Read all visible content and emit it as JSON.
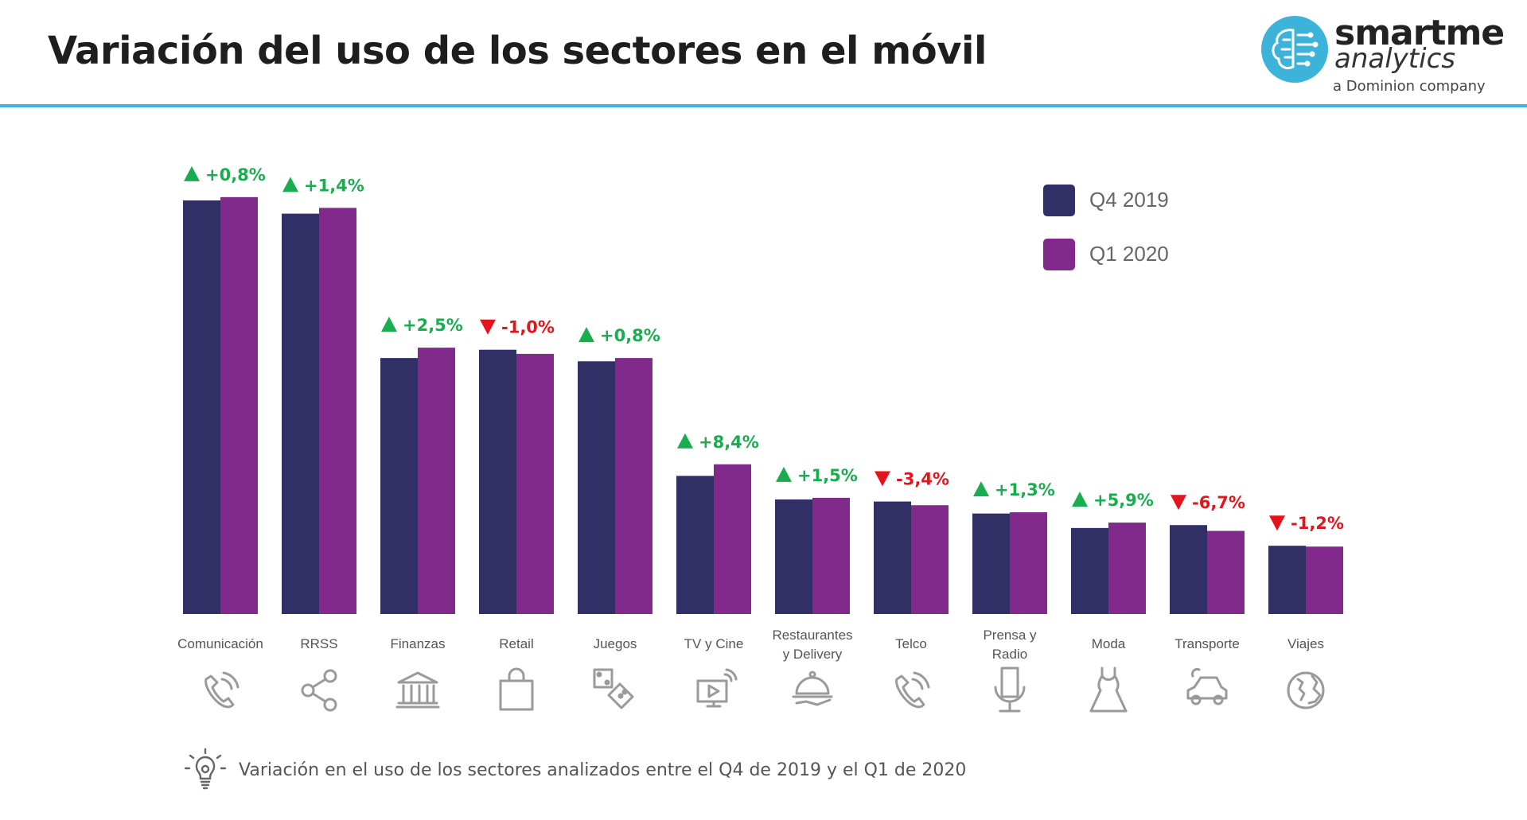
{
  "header": {
    "title": "Variación del uso de los sectores en el móvil"
  },
  "logo": {
    "name": "smartme",
    "sub": "analytics",
    "company": "a Dominion company"
  },
  "colors": {
    "accent": "#3db3d9",
    "q4_2019": "#302f66",
    "q1_2020": "#812a8c",
    "up": "#1aad4f",
    "down": "#e3141c",
    "icon": "#9a9a9a"
  },
  "chart_data": {
    "type": "bar",
    "title": "",
    "xlabel": "",
    "ylabel": "",
    "grid": false,
    "legend_position": "top-right",
    "ylim": [
      0,
      100
    ],
    "categories": [
      "Comunicación",
      "RRSS",
      "Finanzas",
      "Retail",
      "Juegos",
      "TV y Cine",
      "Restaurantes y Delivery",
      "Telco",
      "Prensa y Radio",
      "Moda",
      "Transporte",
      "Viajes"
    ],
    "category_label_lines": [
      [
        "Comunicación"
      ],
      [
        "RRSS"
      ],
      [
        "Finanzas"
      ],
      [
        "Retail"
      ],
      [
        "Juegos"
      ],
      [
        "TV y Cine"
      ],
      [
        "Restaurantes",
        "y Delivery"
      ],
      [
        "Telco"
      ],
      [
        "Prensa y",
        "Radio"
      ],
      [
        "Moda"
      ],
      [
        "Transporte"
      ],
      [
        "Viajes"
      ]
    ],
    "category_icons": [
      "phone-icon",
      "share-icon",
      "bank-icon",
      "shopping-bag-icon",
      "dice-icon",
      "tv-play-icon",
      "serving-cloche-icon",
      "phone-icon",
      "microphone-icon",
      "dress-icon",
      "car-icon",
      "globe-icon"
    ],
    "series": [
      {
        "name": "Q4 2019",
        "values": [
          100,
          96.8,
          61.9,
          63.9,
          61.1,
          33.4,
          27.7,
          27.2,
          24.3,
          20.8,
          21.5,
          16.5
        ]
      },
      {
        "name": "Q1 2020",
        "values": [
          100.8,
          98.2,
          64.4,
          62.9,
          61.9,
          36.2,
          28.1,
          26.3,
          24.6,
          22.1,
          20.1,
          16.3
        ]
      }
    ],
    "annotations": [
      {
        "label": "+0,8%",
        "direction": "up"
      },
      {
        "label": "+1,4%",
        "direction": "up"
      },
      {
        "label": "+2,5%",
        "direction": "up"
      },
      {
        "label": "-1,0%",
        "direction": "down"
      },
      {
        "label": "+0,8%",
        "direction": "up"
      },
      {
        "label": "+8,4%",
        "direction": "up"
      },
      {
        "label": "+1,5%",
        "direction": "up"
      },
      {
        "label": "-3,4%",
        "direction": "down"
      },
      {
        "label": "+1,3%",
        "direction": "up"
      },
      {
        "label": "+5,9%",
        "direction": "up"
      },
      {
        "label": "-6,7%",
        "direction": "down"
      },
      {
        "label": "-1,2%",
        "direction": "down"
      }
    ]
  },
  "footnote": {
    "icon": "lightbulb-icon",
    "text": "Variación en el uso de los sectores analizados entre el Q4 de 2019 y el Q1 de 2020"
  }
}
